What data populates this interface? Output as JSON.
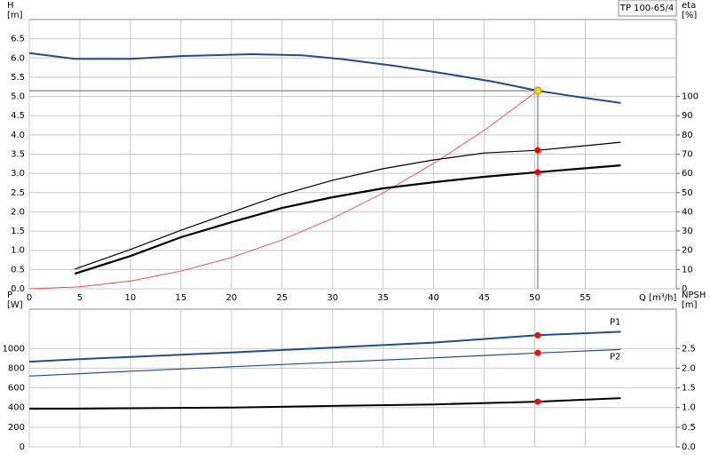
{
  "chart_data": [
    {
      "type": "line",
      "title": "TP 100-65/4",
      "ylabel": "H",
      "yunit": "[m]",
      "y2label": "eta",
      "y2unit": "[%]",
      "xlabel": "Q [m³/h]",
      "xlim": [
        0,
        64
      ],
      "xticks": [
        0,
        5,
        10,
        15,
        20,
        25,
        30,
        35,
        40,
        45,
        50,
        55
      ],
      "ylim": [
        0,
        7
      ],
      "yticks": [
        {
          "value": 0,
          "label": "0.0"
        },
        0.5,
        {
          "value": 1,
          "label": "1.0"
        },
        1.5,
        {
          "value": 2,
          "label": "2.0"
        },
        2.5,
        {
          "value": 3,
          "label": "3.0"
        },
        3.5,
        {
          "value": 4,
          "label": "4.0"
        },
        4.5,
        {
          "value": 5,
          "label": "5.0"
        },
        5.5,
        {
          "value": 6,
          "label": "6.0"
        },
        6.5
      ],
      "y2lim": [
        0,
        140
      ],
      "y2ticks": [
        0,
        10,
        20,
        30,
        40,
        50,
        60,
        70,
        80,
        90,
        100
      ],
      "grid": true,
      "duty_point": {
        "x": 50.3,
        "y": 5.15,
        "color": "#ffd600"
      },
      "series": [
        {
          "color": "#1f4e8c",
          "width": 2,
          "x": [
            0,
            4.5,
            10,
            15,
            22,
            27,
            31,
            36,
            41,
            46,
            50.3,
            54,
            58.5
          ],
          "values": [
            6.13,
            5.98,
            5.98,
            6.05,
            6.1,
            6.07,
            5.97,
            5.8,
            5.6,
            5.38,
            5.15,
            5.0,
            4.83
          ]
        },
        {
          "color": "#ff3030",
          "width": 0.8,
          "x": [
            0,
            5,
            10,
            15,
            20,
            25,
            30,
            35,
            40,
            45,
            50.3
          ],
          "values": [
            0,
            0.05,
            0.2,
            0.46,
            0.81,
            1.27,
            1.83,
            2.49,
            3.26,
            4.12,
            5.15
          ]
        },
        {
          "color": "#000000",
          "width": 1.2,
          "axis": "y2",
          "x": [
            4.5,
            10,
            15,
            20,
            25,
            30,
            35,
            40,
            45,
            50.3,
            58.5
          ],
          "values": [
            10.2,
            20.4,
            30.4,
            39.8,
            49,
            56.4,
            62.4,
            67,
            70.6,
            72,
            76.2
          ],
          "marker": {
            "x": 50.3,
            "value": 72,
            "color": "#ff0000"
          }
        },
        {
          "color": "#000000",
          "width": 2.2,
          "axis": "y2",
          "x": [
            4.5,
            10,
            15,
            20,
            25,
            30,
            35,
            40,
            45,
            50.3,
            58.5
          ],
          "values": [
            7.8,
            17,
            26.8,
            34.6,
            42,
            47.6,
            52.2,
            55.4,
            58.2,
            60.6,
            64.2
          ],
          "marker": {
            "x": 50.3,
            "value": 60.6,
            "color": "#ff0000"
          }
        }
      ]
    },
    {
      "type": "line",
      "ylabel": "P",
      "yunit": "[W]",
      "y2label": "NPSH",
      "y2unit": "[m]",
      "xlim": [
        0,
        64
      ],
      "xticks": [
        0,
        5,
        10,
        15,
        20,
        25,
        30,
        35,
        40,
        45,
        50,
        55
      ],
      "ylim": [
        0,
        1400
      ],
      "yticks": [
        0,
        200,
        400,
        600,
        800,
        1000
      ],
      "y2lim": [
        0,
        3.5
      ],
      "y2ticks": [
        {
          "value": 0,
          "label": "0.0"
        },
        0.5,
        {
          "value": 1,
          "label": "1.0"
        },
        1.5,
        {
          "value": 2,
          "label": "2.0"
        },
        2.5
      ],
      "grid": true,
      "series": [
        {
          "name": "P1",
          "color": "#1f4e8c",
          "width": 2,
          "x": [
            0,
            4.5,
            10,
            20,
            30,
            40,
            50.3,
            58.5
          ],
          "values": [
            866,
            890,
            915,
            960,
            1010,
            1060,
            1135,
            1171
          ],
          "marker": {
            "x": 50.3,
            "value": 1135,
            "color": "#ff0000"
          }
        },
        {
          "name": "P2",
          "color": "#1f4e8c",
          "width": 1.2,
          "x": [
            0,
            10,
            20,
            30,
            40,
            50.3,
            58.5
          ],
          "values": [
            720,
            770,
            815,
            860,
            905,
            955,
            990
          ],
          "marker": {
            "x": 50.3,
            "value": 955,
            "color": "#ff0000"
          }
        },
        {
          "color": "#000000",
          "width": 2,
          "axis": "y2",
          "x": [
            0,
            4.5,
            20,
            30,
            40,
            50.3,
            58.5
          ],
          "values": [
            0.97,
            0.97,
            1.0,
            1.04,
            1.08,
            1.15,
            1.24
          ],
          "marker": {
            "x": 50.3,
            "value": 1.15,
            "color": "#ff0000"
          }
        }
      ]
    }
  ]
}
